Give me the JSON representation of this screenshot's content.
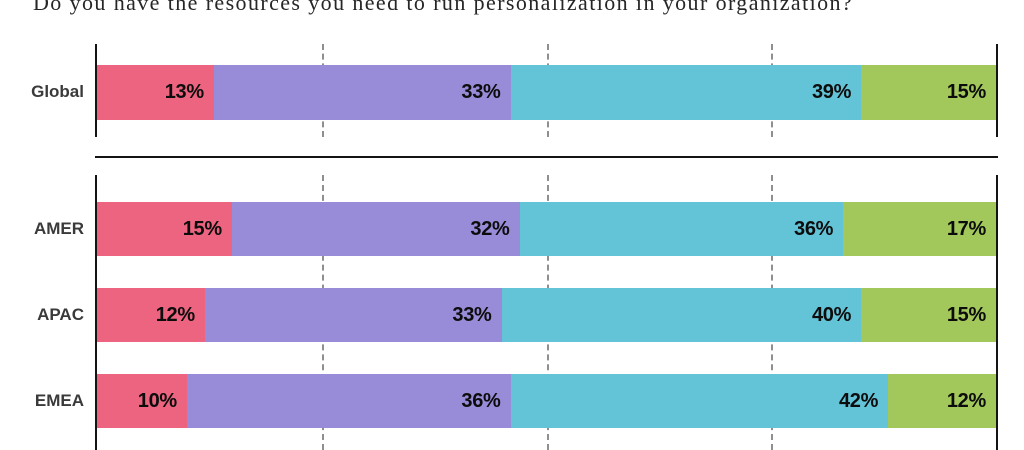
{
  "title": "Do you have the resources you need to run personalization in your organization?",
  "colors": {
    "pink": "#EC6480",
    "purple": "#988CD8",
    "teal": "#63C3D7",
    "green": "#A2C85B",
    "axis": "#141414",
    "gridline": "#8f8f8f",
    "category_label": "#3a3a3a",
    "value_label": "#0c0c0c"
  },
  "chart_data": {
    "type": "bar",
    "orientation": "horizontal",
    "stacked": true,
    "title": "Do you have the resources you need to run personalization in your organization?",
    "categories": [
      "Global",
      "AMER",
      "APAC",
      "EMEA"
    ],
    "series": [
      {
        "name": "segment-1-pink",
        "color": "#EC6480",
        "values": [
          13,
          15,
          12,
          10
        ]
      },
      {
        "name": "segment-2-purple",
        "color": "#988CD8",
        "values": [
          33,
          32,
          33,
          36
        ]
      },
      {
        "name": "segment-3-teal",
        "color": "#63C3D7",
        "values": [
          39,
          36,
          40,
          42
        ]
      },
      {
        "name": "segment-4-green",
        "color": "#A2C85B",
        "values": [
          15,
          17,
          15,
          12
        ]
      }
    ],
    "xlim": [
      0,
      100
    ],
    "gridlines": [
      25,
      50,
      75
    ],
    "unit": "%",
    "legend": "none",
    "groups": [
      [
        "Global"
      ],
      [
        "AMER",
        "APAC",
        "EMEA"
      ]
    ]
  },
  "rows": [
    {
      "category": "Global",
      "segments": [
        {
          "label": "13%",
          "value": 13,
          "color": "#EC6480"
        },
        {
          "label": "33%",
          "value": 33,
          "color": "#988CD8"
        },
        {
          "label": "39%",
          "value": 39,
          "color": "#63C3D7"
        },
        {
          "label": "15%",
          "value": 15,
          "color": "#A2C85B"
        }
      ]
    },
    {
      "category": "AMER",
      "segments": [
        {
          "label": "15%",
          "value": 15,
          "color": "#EC6480"
        },
        {
          "label": "32%",
          "value": 32,
          "color": "#988CD8"
        },
        {
          "label": "36%",
          "value": 36,
          "color": "#63C3D7"
        },
        {
          "label": "17%",
          "value": 17,
          "color": "#A2C85B"
        }
      ]
    },
    {
      "category": "APAC",
      "segments": [
        {
          "label": "12%",
          "value": 12,
          "color": "#EC6480"
        },
        {
          "label": "33%",
          "value": 33,
          "color": "#988CD8"
        },
        {
          "label": "40%",
          "value": 40,
          "color": "#63C3D7"
        },
        {
          "label": "15%",
          "value": 15,
          "color": "#A2C85B"
        }
      ]
    },
    {
      "category": "EMEA",
      "segments": [
        {
          "label": "10%",
          "value": 10,
          "color": "#EC6480"
        },
        {
          "label": "36%",
          "value": 36,
          "color": "#988CD8"
        },
        {
          "label": "42%",
          "value": 42,
          "color": "#63C3D7"
        },
        {
          "label": "12%",
          "value": 12,
          "color": "#A2C85B"
        }
      ]
    }
  ]
}
